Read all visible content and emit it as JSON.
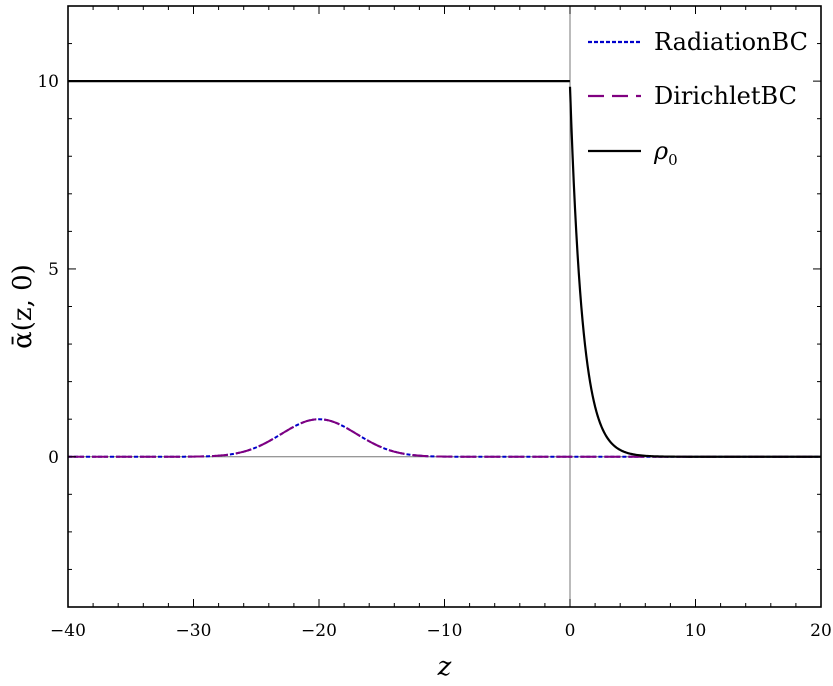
{
  "chart_data": {
    "type": "line",
    "title": "",
    "xlabel": "z",
    "ylabel": "ᾱ(z, 0)",
    "xlim": [
      -40,
      20
    ],
    "ylim": [
      -4,
      12
    ],
    "grid": false,
    "legend_position": "top-right",
    "x_ticks": [
      -40,
      -30,
      -20,
      -10,
      0,
      10,
      20
    ],
    "x_tick_labels": [
      "−40",
      "−30",
      "−20",
      "−10",
      "0",
      "10",
      "20"
    ],
    "y_ticks": [
      0,
      5,
      10
    ],
    "y_tick_labels": [
      "0",
      "5",
      "10"
    ],
    "series": [
      {
        "name": "RadiationBC",
        "color": "#0000cc",
        "style": "dotted",
        "x": [
          -40,
          -32,
          -30,
          -28,
          -26,
          -24,
          -22,
          -21,
          -20,
          -19,
          -18,
          -16,
          -14,
          -12,
          -10,
          -8,
          -4,
          0,
          5,
          10,
          20
        ],
        "y": [
          0.0,
          0.01,
          0.04,
          0.13,
          0.32,
          0.6,
          0.88,
          0.97,
          1.0,
          0.97,
          0.88,
          0.6,
          0.32,
          0.13,
          0.04,
          0.01,
          0.0,
          0.0,
          0.0,
          0.0,
          0.0
        ]
      },
      {
        "name": "DirichletBC",
        "color": "#800080",
        "style": "dashed",
        "x": [
          -40,
          -32,
          -30,
          -28,
          -26,
          -24,
          -22,
          -21,
          -20,
          -19,
          -18,
          -16,
          -14,
          -12,
          -10,
          -8,
          -4,
          0,
          5,
          10,
          20
        ],
        "y": [
          0.0,
          0.01,
          0.04,
          0.13,
          0.32,
          0.6,
          0.88,
          0.97,
          1.0,
          0.97,
          0.88,
          0.6,
          0.32,
          0.13,
          0.04,
          0.01,
          0.0,
          0.0,
          0.0,
          0.0,
          0.0
        ]
      },
      {
        "name": "ρ",
        "name_subscript": "0",
        "color": "#000000",
        "style": "solid",
        "x": [
          -40,
          -0.01,
          0,
          0.25,
          0.5,
          1,
          1.5,
          2,
          2.5,
          3,
          3.5,
          4,
          5,
          6,
          8,
          10,
          20
        ],
        "y": [
          10,
          10,
          9.85,
          7.79,
          6.07,
          3.68,
          2.23,
          1.35,
          0.82,
          0.5,
          0.3,
          0.18,
          0.07,
          0.02,
          0.0,
          0.0,
          0.0
        ]
      }
    ]
  }
}
